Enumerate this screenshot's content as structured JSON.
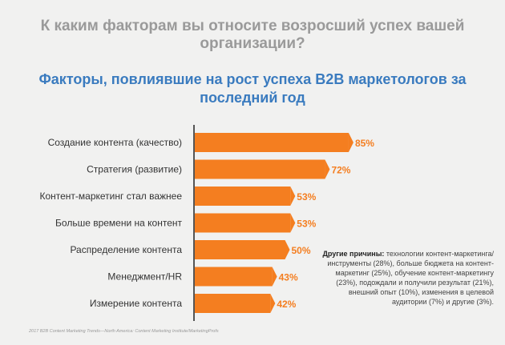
{
  "header": {
    "question": "К каким факторам вы относите возросший успех вашей организации?",
    "subtitle": "Факторы, повлиявшие на рост успеха B2B маркетологов за последний год"
  },
  "note": {
    "lead": "Другие причины:",
    "text": "технологии контент-маркетинга/инструменты (28%), больше бюджета на контент-маркетинг (25%), обучение контент-маркетингу (23%), подождали и получили результат (21%), внешний опыт (10%), изменения в целевой аудитории (7%) и другие (3%)."
  },
  "source": "2017 B2B Content Marketing Trends—North America: Content Marketing Institute/MarketingProfs",
  "colors": {
    "bar": "#f47e20",
    "axis": "#555555",
    "label": "#333333"
  },
  "chart_data": {
    "type": "bar",
    "orientation": "horizontal",
    "categories": [
      "Создание контента  (качество)",
      "Стратегия (развитие)",
      "Контент-маркетинг стал важнее",
      "Больше времени на контент",
      "Распределение контента",
      "Менеджмент/HR",
      "Измерение контента"
    ],
    "values": [
      85,
      72,
      53,
      53,
      50,
      43,
      42
    ],
    "value_labels": [
      "85%",
      "72%",
      "53%",
      "53%",
      "50%",
      "43%",
      "42%"
    ],
    "xlim": [
      0,
      100
    ],
    "grid": false
  }
}
